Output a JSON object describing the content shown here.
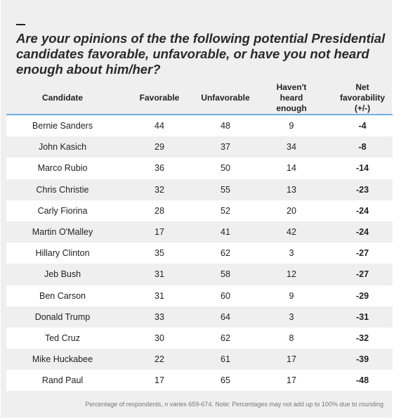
{
  "title": "Are your opinions of the the following potential Presidential candidates favorable, unfavorable, or have you not heard enough about him/her?",
  "footnote": "Percentage of respondents, n varies 659-674. Note: Percentages may not add up to 100% due to rounding",
  "chart_data": {
    "type": "table",
    "columns": [
      "Candidate",
      "Favorable",
      "Unfavorable",
      "Haven't heard enough",
      "Net favorability (+/-)"
    ],
    "rows": [
      [
        "Bernie Sanders",
        "44",
        "48",
        "9",
        "-4"
      ],
      [
        "John Kasich",
        "29",
        "37",
        "34",
        "-8"
      ],
      [
        "Marco Rubio",
        "36",
        "50",
        "14",
        "-14"
      ],
      [
        "Chris Christie",
        "32",
        "55",
        "13",
        "-23"
      ],
      [
        "Carly Fiorina",
        "28",
        "52",
        "20",
        "-24"
      ],
      [
        "Martin O'Malley",
        "17",
        "41",
        "42",
        "-24"
      ],
      [
        "Hillary Clinton",
        "35",
        "62",
        "3",
        "-27"
      ],
      [
        "Jeb Bush",
        "31",
        "58",
        "12",
        "-27"
      ],
      [
        "Ben Carson",
        "31",
        "60",
        "9",
        "-29"
      ],
      [
        "Donald Trump",
        "33",
        "64",
        "3",
        "-31"
      ],
      [
        "Ted Cruz",
        "30",
        "62",
        "8",
        "-32"
      ],
      [
        "Mike Huckabee",
        "22",
        "61",
        "17",
        "-39"
      ],
      [
        "Rand Paul",
        "17",
        "65",
        "17",
        "-48"
      ]
    ]
  },
  "colors": {
    "header_rule": "#6fb0e0",
    "band": "#efefef",
    "background": "#ffffff"
  }
}
